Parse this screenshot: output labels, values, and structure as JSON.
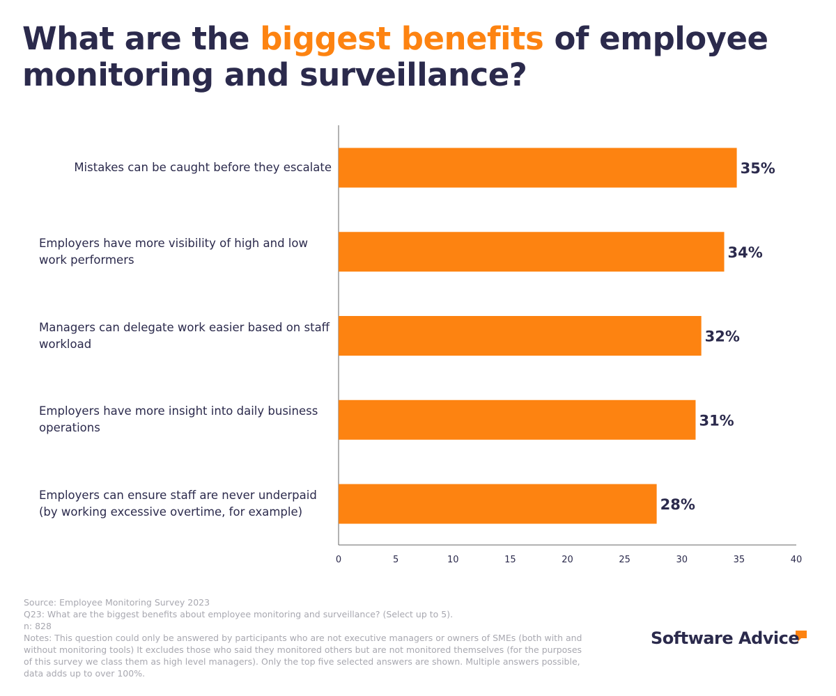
{
  "chart_data": {
    "type": "bar",
    "orientation": "horizontal",
    "title": {
      "before": "What are the ",
      "highlight": "biggest benefits",
      "after": " of employee monitoring and surveillance?"
    },
    "categories": [
      "Mistakes can be caught before they escalate",
      "Employers have more visibility of high and low work performers",
      "Managers can delegate work easier based on staff workload",
      "Employers have more insight into daily business operations",
      "Employers can ensure staff are never underpaid (by working excessive overtime, for example)"
    ],
    "values": [
      34.8,
      33.7,
      31.7,
      31.2,
      27.8
    ],
    "value_labels": [
      "35%",
      "34%",
      "32%",
      "31%",
      "28%"
    ],
    "color": "#fd8311",
    "xlim": [
      0,
      40
    ],
    "xticks": [
      0,
      5,
      10,
      15,
      20,
      25,
      30,
      35,
      40
    ],
    "grid": false
  },
  "footer": {
    "source": "Source: Employee Monitoring Survey 2023",
    "question": "Q23: What are the biggest benefits about employee monitoring and surveillance? (Select up to 5).",
    "n": "n: 828",
    "notes": "Notes: This question could only be answered by participants who are not executive managers or owners of SMEs (both with and without monitoring tools) It excludes those who said they monitored others but are not monitored themselves (for the purposes of this survey we class them as high level managers). Only the top five selected answers are shown. Multiple answers possible, data adds up to over 100%.",
    "brand": "Software Advice"
  }
}
